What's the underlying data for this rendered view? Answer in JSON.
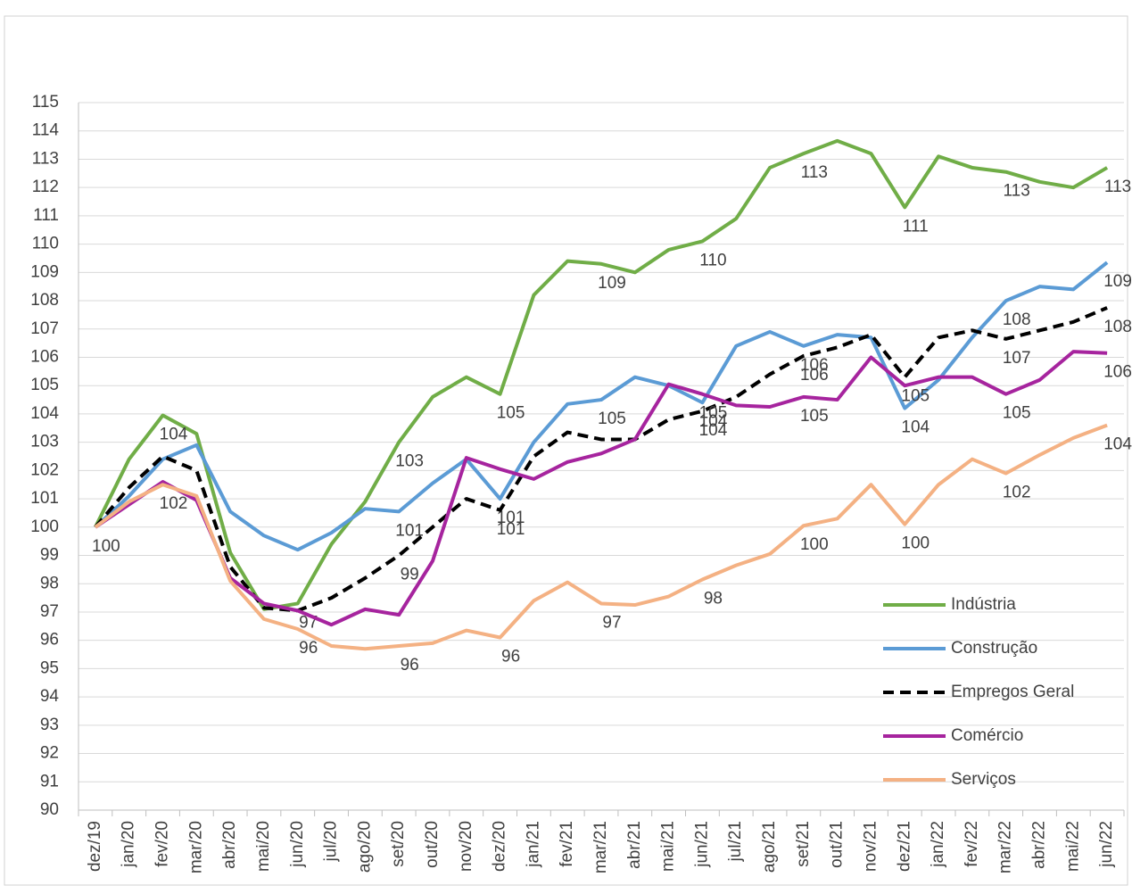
{
  "chart_data": {
    "type": "line",
    "categories": [
      "dez/19",
      "jan/20",
      "fev/20",
      "mar/20",
      "abr/20",
      "mai/20",
      "jun/20",
      "jul/20",
      "ago/20",
      "set/20",
      "out/20",
      "nov/20",
      "dez/20",
      "jan/21",
      "fev/21",
      "mar/21",
      "abr/21",
      "mai/21",
      "jun/21",
      "jul/21",
      "ago/21",
      "set/21",
      "out/21",
      "nov/21",
      "dez/21",
      "jan/22",
      "fev/22",
      "mar/22",
      "abr/22",
      "mai/22",
      "jun/22"
    ],
    "ylim": [
      90,
      115
    ],
    "yticks": [
      90,
      91,
      92,
      93,
      94,
      95,
      96,
      97,
      98,
      99,
      100,
      101,
      102,
      103,
      104,
      105,
      106,
      107,
      108,
      109,
      110,
      111,
      112,
      113,
      114,
      115
    ],
    "grid": true,
    "legend": "right",
    "series": [
      {
        "name": "Indústria",
        "color": "#70ad47",
        "dash": false,
        "values": [
          100,
          102.4,
          103.95,
          103.3,
          99.1,
          97.1,
          97.3,
          99.4,
          100.9,
          103.0,
          104.6,
          105.3,
          104.7,
          108.2,
          109.4,
          109.3,
          109.0,
          109.8,
          110.1,
          110.9,
          112.7,
          113.2,
          113.65,
          113.2,
          111.3,
          113.1,
          112.7,
          112.55,
          112.2,
          112.0,
          112.7
        ],
        "value_labels": [
          null,
          null,
          "104",
          null,
          null,
          null,
          "97",
          null,
          null,
          "103",
          null,
          null,
          "105",
          null,
          null,
          "109",
          null,
          null,
          "110",
          null,
          null,
          "113",
          null,
          null,
          "111",
          null,
          null,
          "113",
          null,
          null,
          "113"
        ]
      },
      {
        "name": "Construção",
        "color": "#5b9bd5",
        "dash": false,
        "values": [
          100,
          101.1,
          102.4,
          102.9,
          100.55,
          99.7,
          99.2,
          99.8,
          100.65,
          100.55,
          101.55,
          102.4,
          101.0,
          103.0,
          104.35,
          104.5,
          105.3,
          105.0,
          104.4,
          106.4,
          106.9,
          106.4,
          106.8,
          106.7,
          104.2,
          105.2,
          106.7,
          108.0,
          108.5,
          108.4,
          109.35
        ],
        "value_labels": [
          "100",
          null,
          null,
          null,
          null,
          null,
          null,
          null,
          null,
          "101",
          null,
          null,
          "101",
          null,
          null,
          "105",
          null,
          null,
          "104",
          null,
          null,
          "106",
          null,
          null,
          "104",
          null,
          null,
          "108",
          null,
          null,
          "109"
        ]
      },
      {
        "name": "Empregos Geral",
        "color": "#000000",
        "dash": true,
        "values": [
          100,
          101.4,
          102.5,
          102.0,
          98.6,
          97.15,
          97.05,
          97.5,
          98.2,
          99.0,
          100.0,
          101.0,
          100.6,
          102.5,
          103.35,
          103.1,
          103.1,
          103.8,
          104.1,
          104.6,
          105.4,
          106.05,
          106.35,
          106.8,
          105.3,
          106.7,
          106.95,
          106.65,
          106.95,
          107.25,
          107.75
        ],
        "value_labels": [
          null,
          null,
          null,
          null,
          null,
          null,
          null,
          null,
          null,
          "99",
          null,
          null,
          "101",
          null,
          null,
          null,
          null,
          null,
          "104",
          null,
          null,
          "106",
          null,
          null,
          "105",
          null,
          null,
          "107",
          null,
          null,
          "108"
        ]
      },
      {
        "name": "Comércio",
        "color": "#a6249e",
        "dash": false,
        "values": [
          100,
          100.8,
          101.6,
          100.95,
          98.2,
          97.3,
          97.05,
          96.55,
          97.1,
          96.9,
          98.8,
          102.45,
          102.05,
          101.7,
          102.3,
          102.6,
          103.1,
          105.05,
          104.7,
          104.3,
          104.25,
          104.6,
          104.5,
          106.0,
          105.0,
          105.3,
          105.3,
          104.7,
          105.2,
          106.2,
          106.15
        ],
        "value_labels": [
          null,
          null,
          null,
          null,
          null,
          null,
          null,
          null,
          null,
          null,
          null,
          null,
          null,
          null,
          null,
          null,
          null,
          null,
          "105",
          null,
          null,
          "105",
          null,
          null,
          null,
          null,
          null,
          "105",
          null,
          null,
          "106"
        ]
      },
      {
        "name": "Serviços",
        "color": "#f4b183",
        "dash": false,
        "values": [
          100,
          100.9,
          101.5,
          101.1,
          98.1,
          96.75,
          96.4,
          95.8,
          95.7,
          95.8,
          95.9,
          96.35,
          96.1,
          97.4,
          98.05,
          97.3,
          97.25,
          97.55,
          98.15,
          98.65,
          99.05,
          100.05,
          100.3,
          101.5,
          100.1,
          101.5,
          102.4,
          101.9,
          102.55,
          103.15,
          103.6
        ],
        "value_labels": [
          null,
          null,
          "102",
          null,
          null,
          null,
          "96",
          null,
          null,
          "96",
          null,
          null,
          "96",
          null,
          null,
          "97",
          null,
          null,
          "98",
          null,
          null,
          "100",
          null,
          null,
          "100",
          null,
          null,
          "102",
          null,
          null,
          "104"
        ]
      }
    ]
  }
}
